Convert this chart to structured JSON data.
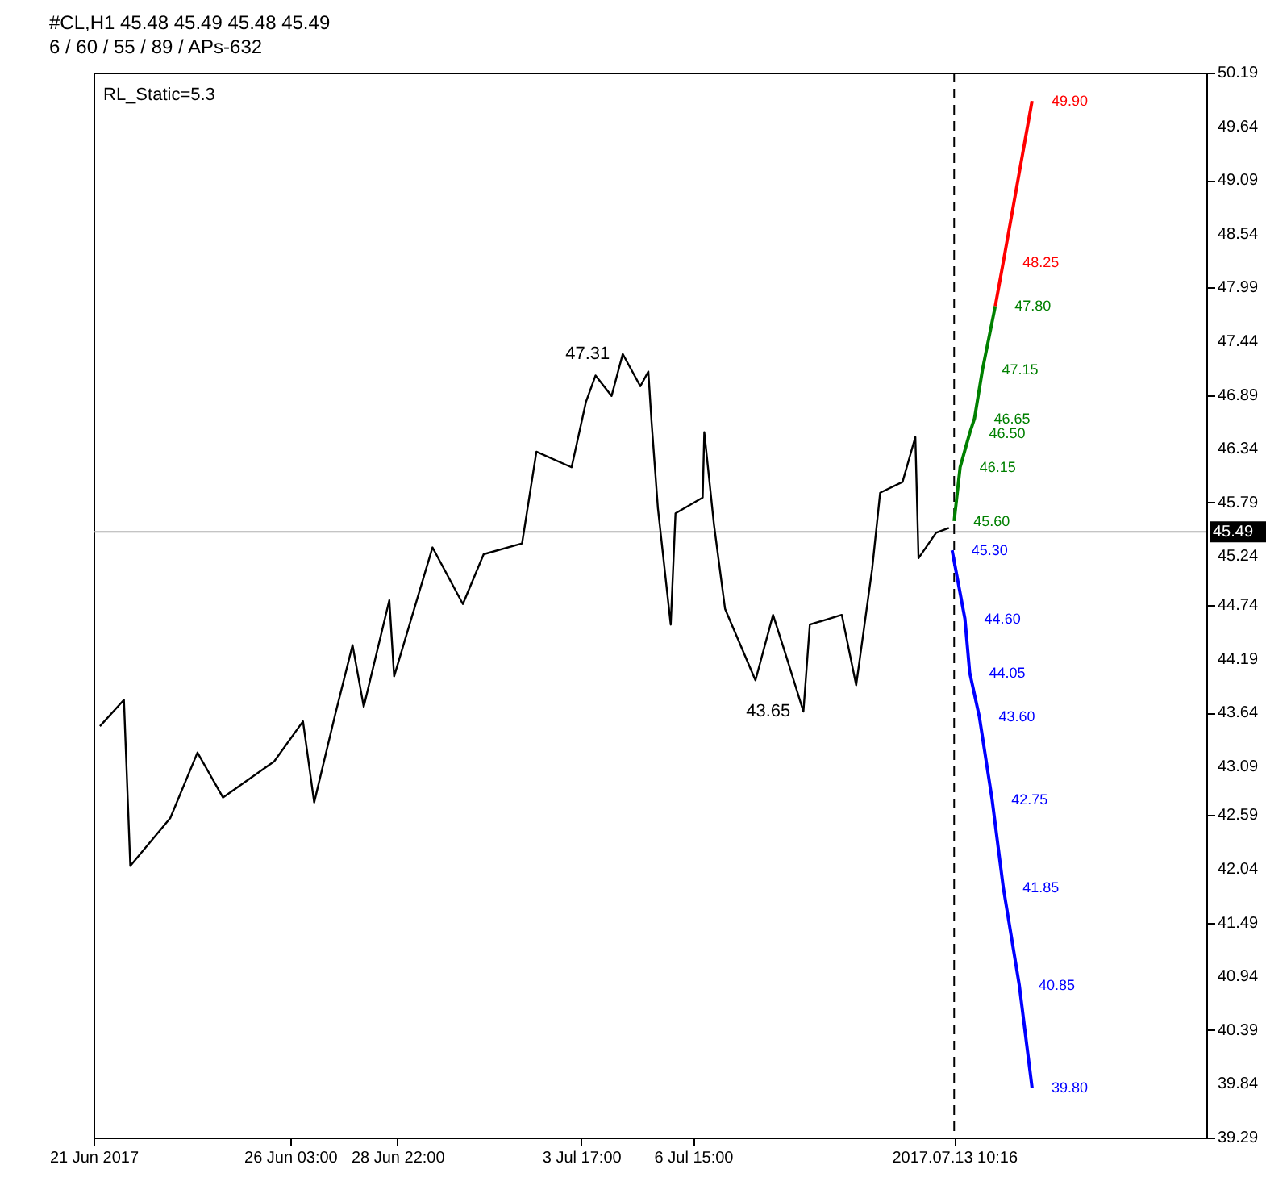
{
  "chart_data": {
    "type": "line",
    "title": "#CL,H1  45.48 45.49 45.48 45.49",
    "subtitle": "6 / 60 / 55 / 89 / APs-632",
    "xlim": [
      "2017-06-21T00:00",
      "2017-07-20T00:00"
    ],
    "ylim": [
      39.29,
      50.19
    ],
    "xticks": [
      {
        "value": "2017-06-21T00:00",
        "label": "21 Jun 2017"
      },
      {
        "value": "2017-06-26T03:00",
        "label": "26 Jun 03:00"
      },
      {
        "value": "2017-06-28T22:00",
        "label": "28 Jun 22:00"
      },
      {
        "value": "2017-07-03T17:00",
        "label": "3 Jul 17:00"
      },
      {
        "value": "2017-07-06T15:00",
        "label": "6 Jul 15:00"
      },
      {
        "value": "2017-07-13T10:16",
        "label": "2017.07.13 10:16"
      }
    ],
    "yticks": [
      39.29,
      39.84,
      40.39,
      40.94,
      41.49,
      42.04,
      42.59,
      43.09,
      43.64,
      44.19,
      44.74,
      45.24,
      45.79,
      46.34,
      46.89,
      47.44,
      47.99,
      48.54,
      49.09,
      49.64,
      50.19
    ],
    "grid": false,
    "marker": "none",
    "line_style": "solid",
    "series": [
      {
        "color": "#000000",
        "x": [
          "2017-06-21T04:00",
          "2017-06-21T19:00",
          "2017-06-21T23:00",
          "2017-06-23T00:00",
          "2017-06-23T17:00",
          "2017-06-24T09:00",
          "2017-06-25T17:00",
          "2017-06-26T11:00",
          "2017-06-26T18:00",
          "2017-06-27T07:00",
          "2017-06-27T18:00",
          "2017-06-28T01:00",
          "2017-06-28T17:00",
          "2017-06-28T20:00",
          "2017-06-29T20:00",
          "2017-06-30T15:00",
          "2017-07-01T04:00",
          "2017-07-02T04:00",
          "2017-07-02T13:00",
          "2017-07-03T11:00",
          "2017-07-03T20:00",
          "2017-07-04T02:00",
          "2017-07-04T12:00",
          "2017-07-04T19:00",
          "2017-07-05T06:00",
          "2017-07-05T11:00",
          "2017-07-05T13:00",
          "2017-07-05T17:00",
          "2017-07-06T01:00",
          "2017-07-06T04:00",
          "2017-07-06T21:00",
          "2017-07-06T22:00",
          "2017-07-07T04:00",
          "2017-07-07T11:00",
          "2017-07-08T06:00",
          "2017-07-08T17:00",
          "2017-07-09T01:00",
          "2017-07-09T12:00",
          "2017-07-09T16:00",
          "2017-07-10T12:00",
          "2017-07-10T21:00",
          "2017-07-11T07:00",
          "2017-07-11T12:00",
          "2017-07-12T02:00",
          "2017-07-12T10:00",
          "2017-07-12T12:00",
          "2017-07-12T23:00",
          "2017-07-13T07:00"
        ],
        "values": [
          43.5,
          43.77,
          42.07,
          42.56,
          43.23,
          42.77,
          43.14,
          43.55,
          42.72,
          43.61,
          44.33,
          43.7,
          44.79,
          44.01,
          45.33,
          44.75,
          45.26,
          45.37,
          46.31,
          46.15,
          46.82,
          47.09,
          46.88,
          47.31,
          46.98,
          47.13,
          46.62,
          45.73,
          44.54,
          45.68,
          45.84,
          46.51,
          45.57,
          44.7,
          43.97,
          44.64,
          44.23,
          43.65,
          44.54,
          44.64,
          43.92,
          45.11,
          45.89,
          46.0,
          46.46,
          45.22,
          45.48,
          45.53
        ]
      },
      {
        "color": "#008000",
        "x": [
          "2017-07-13T10:16",
          "2017-07-13T14:00",
          "2017-07-13T20:00",
          "2017-07-13T23:00",
          "2017-07-14T04:00",
          "2017-07-14T12:00"
        ],
        "values": [
          45.6,
          46.15,
          46.5,
          46.65,
          47.15,
          47.8
        ],
        "value_labels": [
          "45.60",
          "46.15",
          "46.50",
          "46.65",
          "47.15",
          "47.80"
        ]
      },
      {
        "color": "#ff0000",
        "x": [
          "2017-07-14T12:00",
          "2017-07-14T17:00",
          "2017-07-15T11:00"
        ],
        "values": [
          47.8,
          48.25,
          49.9
        ],
        "value_labels": [
          null,
          "48.25",
          "49.90"
        ]
      },
      {
        "color": "#0000ff",
        "x": [
          "2017-07-13T09:00",
          "2017-07-13T17:00",
          "2017-07-13T20:00",
          "2017-07-14T02:00",
          "2017-07-14T10:00",
          "2017-07-14T17:00",
          "2017-07-15T03:00",
          "2017-07-15T11:00"
        ],
        "values": [
          45.3,
          44.6,
          44.05,
          43.6,
          42.75,
          41.85,
          40.85,
          39.8
        ],
        "value_labels": [
          "45.30",
          "44.60",
          "44.05",
          "43.60",
          "42.75",
          "41.85",
          "40.85",
          "39.80"
        ]
      }
    ],
    "ref_lines": [
      {
        "axis": "y",
        "value": 45.49,
        "label": "45.49",
        "color": "#b0b0b0",
        "line_style": "solid"
      },
      {
        "axis": "x",
        "value": "2017-07-13T10:16",
        "color": "#000000",
        "line_style": "dashed"
      }
    ],
    "annotations": [
      "RL_Static=5.3",
      {
        "text": "47.31",
        "x": "2017-07-04T19:00",
        "y": 47.31
      },
      {
        "text": "43.65",
        "x": "2017-07-09T12:00",
        "y": 43.65
      }
    ]
  }
}
